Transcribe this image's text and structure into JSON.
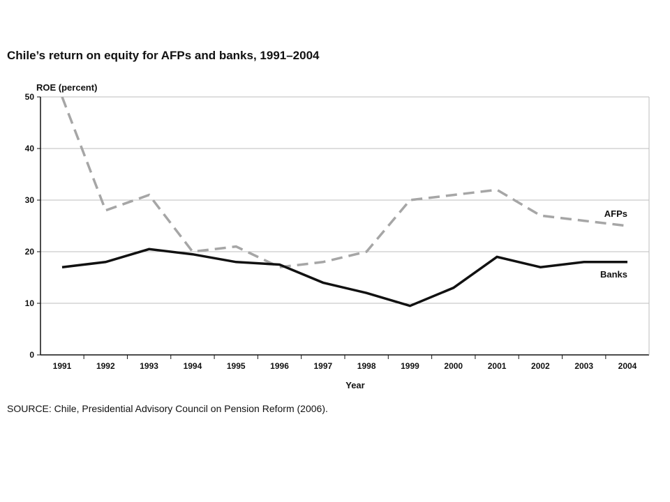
{
  "title": "Chile’s return on equity for AFPs and banks, 1991–2004",
  "source": "SOURCE: Chile, Presidential Advisory Council on Pension Reform (2006).",
  "chart_data": {
    "type": "line",
    "ylabel": "ROE (percent)",
    "xlabel": "Year",
    "ylim": [
      0,
      50
    ],
    "yticks": [
      0,
      10,
      20,
      30,
      40,
      50
    ],
    "categories": [
      "1991",
      "1992",
      "1993",
      "1994",
      "1995",
      "1996",
      "1997",
      "1998",
      "1999",
      "2000",
      "2001",
      "2002",
      "2003",
      "2004"
    ],
    "grid": "horizontal",
    "series": [
      {
        "name": "AFPs",
        "style": "dashed",
        "color": "#a6a6a6",
        "values": [
          50,
          28,
          31,
          20,
          21,
          17,
          18,
          20,
          30,
          31,
          32,
          27,
          26,
          25
        ]
      },
      {
        "name": "Banks",
        "style": "solid",
        "color": "#111111",
        "values": [
          17,
          18,
          20.5,
          19.5,
          18,
          17.5,
          14,
          12,
          9.5,
          13,
          19,
          17,
          18,
          18
        ]
      }
    ]
  }
}
